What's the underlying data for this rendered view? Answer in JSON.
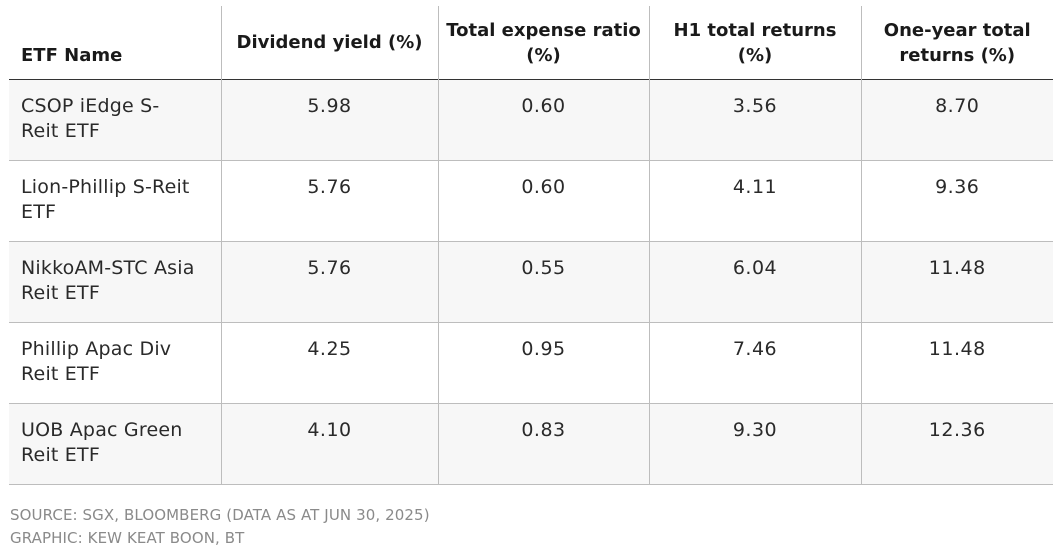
{
  "chart_data": {
    "type": "table",
    "columns": [
      "ETF Name",
      "Dividend yield (%)",
      "Total expense ratio (%)",
      "H1 total returns (%)",
      "One-year total returns (%)"
    ],
    "rows": [
      [
        "CSOP iEdge S-Reit ETF",
        "5.98",
        "0.60",
        "3.56",
        "8.70"
      ],
      [
        "Lion-Phillip S-Reit ETF",
        "5.76",
        "0.60",
        "4.11",
        "9.36"
      ],
      [
        "NikkoAM-STC Asia Reit ETF",
        "5.76",
        "0.55",
        "6.04",
        "11.48"
      ],
      [
        "Phillip Apac Div Reit ETF",
        "4.25",
        "0.95",
        "7.46",
        "11.48"
      ],
      [
        "UOB Apac Green Reit ETF",
        "4.10",
        "0.83",
        "9.30",
        "12.36"
      ]
    ]
  },
  "footer": {
    "source": "SOURCE: SGX, BLOOMBERG (DATA AS AT JUN 30, 2025)",
    "credit": "GRAPHIC: KEW KEAT BOON, BT"
  }
}
